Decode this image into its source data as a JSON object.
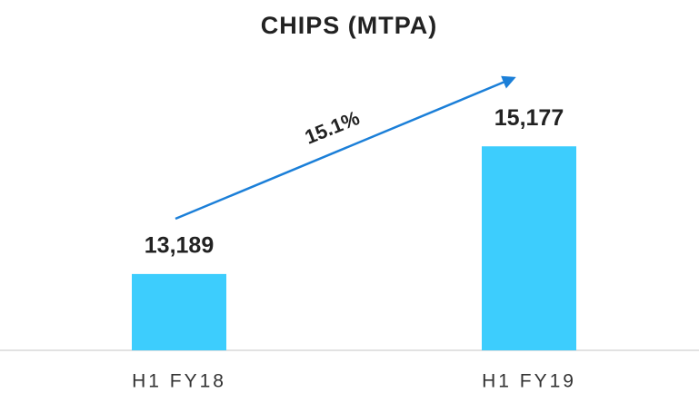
{
  "chart_data": {
    "type": "bar",
    "title": "CHIPS (MTPA)",
    "categories": [
      "H1 FY18",
      "H1 FY19"
    ],
    "values": [
      13189,
      15177
    ],
    "value_labels": [
      "13,189",
      "15,177"
    ],
    "color": "#3dcdfd",
    "ylim": [
      12000,
      16000
    ],
    "annotation": "15.1%",
    "arrow_color": "#1b7fd8"
  }
}
